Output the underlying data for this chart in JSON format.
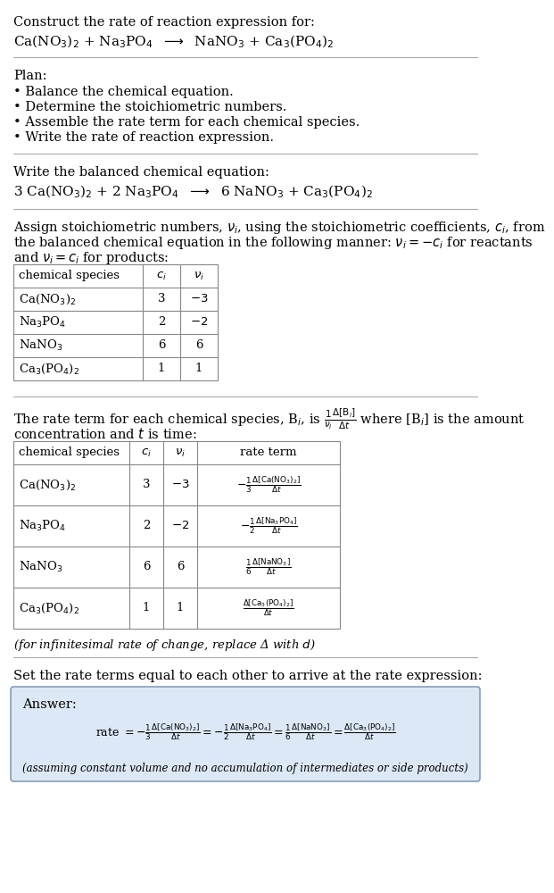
{
  "bg_color": "#ffffff",
  "text_color": "#000000",
  "title_line1": "Construct the rate of reaction expression for:",
  "plan_header": "Plan:",
  "plan_items": [
    "• Balance the chemical equation.",
    "• Determine the stoichiometric numbers.",
    "• Assemble the rate term for each chemical species.",
    "• Write the rate of reaction expression."
  ],
  "balanced_header": "Write the balanced chemical equation:",
  "assign_text1": "Assign stoichiometric numbers, $\\nu_i$, using the stoichiometric coefficients, $c_i$, from",
  "assign_text2": "the balanced chemical equation in the following manner: $\\nu_i = -c_i$ for reactants",
  "assign_text3": "and $\\nu_i = c_i$ for products:",
  "table1_cols": [
    "chemical species",
    "$c_i$",
    "$\\nu_i$"
  ],
  "table1_rows": [
    [
      "Ca(NO$_3$)$_2$",
      "3",
      "$-3$"
    ],
    [
      "Na$_3$PO$_4$",
      "2",
      "$-2$"
    ],
    [
      "NaNO$_3$",
      "6",
      "6"
    ],
    [
      "Ca$_3$(PO$_4$)$_2$",
      "1",
      "1"
    ]
  ],
  "rate_text1": "The rate term for each chemical species, B$_i$, is $\\frac{1}{\\nu_i}\\frac{\\Delta[\\mathrm{B}_i]}{\\Delta t}$ where [B$_i$] is the amount",
  "rate_text2": "concentration and $t$ is time:",
  "table2_cols": [
    "chemical species",
    "$c_i$",
    "$\\nu_i$",
    "rate term"
  ],
  "table2_rows": [
    [
      "Ca(NO$_3$)$_2$",
      "3",
      "$-3$",
      "$-\\frac{1}{3}\\frac{\\Delta[\\mathrm{Ca(NO_3)_2}]}{\\Delta t}$"
    ],
    [
      "Na$_3$PO$_4$",
      "2",
      "$-2$",
      "$-\\frac{1}{2}\\frac{\\Delta[\\mathrm{Na_3PO_4}]}{\\Delta t}$"
    ],
    [
      "NaNO$_3$",
      "6",
      "6",
      "$\\frac{1}{6}\\frac{\\Delta[\\mathrm{NaNO_3}]}{\\Delta t}$"
    ],
    [
      "Ca$_3$(PO$_4$)$_2$",
      "1",
      "1",
      "$\\frac{\\Delta[\\mathrm{Ca_3(PO_4)_2}]}{\\Delta t}$"
    ]
  ],
  "infinitesimal_note": "(for infinitesimal rate of change, replace Δ with $d$)",
  "set_equal_text": "Set the rate terms equal to each other to arrive at the rate expression:",
  "answer_box_color": "#dce8f5",
  "answer_border_color": "#7090b0",
  "answer_label": "Answer:",
  "answer_footnote": "(assuming constant volume and no accumulation of intermediates or side products)"
}
